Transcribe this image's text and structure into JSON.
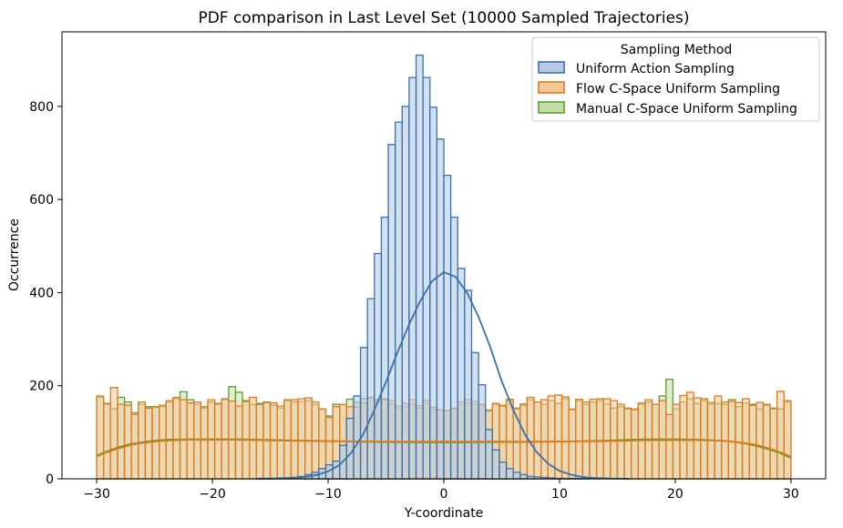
{
  "chart_data": {
    "type": "bar",
    "title": "PDF comparison in Last Level Set (10000 Sampled Trajectories)",
    "xlabel": "Y-coordinate",
    "ylabel": "Occurrence",
    "xlim": [
      -33.0,
      33.0
    ],
    "ylim": [
      0,
      960
    ],
    "xticks": [
      -30,
      -20,
      -10,
      0,
      10,
      20,
      30
    ],
    "xtick_labels": [
      "−30",
      "−20",
      "−10",
      "0",
      "10",
      "20",
      "30"
    ],
    "yticks": [
      0,
      200,
      400,
      600,
      800
    ],
    "ytick_labels": [
      "0",
      "200",
      "400",
      "600",
      "800"
    ],
    "grid": false,
    "legend": {
      "title": "Sampling Method",
      "position": "top-right"
    },
    "bin_width": 0.6,
    "series": [
      {
        "name": "Uniform Action Sampling",
        "color": "#3a70ad",
        "fill": "#b6cbe6",
        "x": [
          -16.2,
          -15.6,
          -15.0,
          -14.4,
          -13.8,
          -13.2,
          -12.6,
          -12.0,
          -11.4,
          -10.8,
          -10.2,
          -9.6,
          -9.0,
          -8.4,
          -7.8,
          -7.2,
          -6.6,
          -6.0,
          -5.4,
          -4.8,
          -4.2,
          -3.6,
          -3.0,
          -2.4,
          -1.8,
          -1.2,
          -0.6,
          0.0,
          0.6,
          1.2,
          1.8,
          2.4,
          3.0,
          3.6,
          4.2,
          4.8,
          5.4,
          6.0,
          6.6,
          7.2,
          7.8,
          8.4,
          9.0,
          9.6,
          10.2,
          10.8,
          11.4,
          12.0,
          12.6,
          13.2,
          13.8,
          14.4,
          15.0
        ],
        "values": [
          1,
          1,
          1,
          2,
          2,
          3,
          5,
          9,
          14,
          22,
          30,
          38,
          72,
          130,
          178,
          282,
          387,
          484,
          562,
          718,
          766,
          800,
          862,
          910,
          862,
          798,
          730,
          652,
          562,
          452,
          405,
          271,
          202,
          106,
          62,
          36,
          22,
          14,
          9,
          5,
          4,
          3,
          2,
          1,
          1,
          1,
          1,
          1,
          0,
          0,
          0,
          0,
          0
        ]
      },
      {
        "name": "Flow C-Space Uniform Sampling",
        "color": "#e07a1f",
        "fill": "#f6c89a",
        "x": [
          -30.0,
          -29.4,
          -28.8,
          -28.2,
          -27.6,
          -27.0,
          -26.4,
          -25.8,
          -25.2,
          -24.6,
          -24.0,
          -23.4,
          -22.8,
          -22.2,
          -21.6,
          -21.0,
          -20.4,
          -19.8,
          -19.2,
          -18.6,
          -18.0,
          -17.4,
          -16.8,
          -16.2,
          -15.6,
          -15.0,
          -14.4,
          -13.8,
          -13.2,
          -12.6,
          -12.0,
          -11.4,
          -10.8,
          -10.2,
          -9.6,
          -9.0,
          -8.4,
          -7.8,
          -7.2,
          -6.6,
          -6.0,
          -5.4,
          -4.8,
          -4.2,
          -3.6,
          -3.0,
          -2.4,
          -1.8,
          -1.2,
          -0.6,
          0.0,
          0.6,
          1.2,
          1.8,
          2.4,
          3.0,
          3.6,
          4.2,
          4.8,
          5.4,
          6.0,
          6.6,
          7.2,
          7.8,
          8.4,
          9.0,
          9.6,
          10.2,
          10.8,
          11.4,
          12.0,
          12.6,
          13.2,
          13.8,
          14.4,
          15.0,
          15.6,
          16.2,
          16.8,
          17.4,
          18.0,
          18.6,
          19.2,
          19.8,
          20.4,
          21.0,
          21.6,
          22.2,
          22.8,
          23.4,
          24.0,
          24.6,
          25.2,
          25.8,
          26.4,
          27.0,
          27.6,
          28.2,
          28.8,
          29.4
        ],
        "values": [
          178,
          162,
          196,
          160,
          158,
          138,
          165,
          152,
          155,
          158,
          168,
          175,
          170,
          163,
          165,
          155,
          170,
          162,
          172,
          167,
          156,
          166,
          175,
          160,
          164,
          163,
          156,
          170,
          170,
          172,
          174,
          165,
          150,
          132,
          155,
          160,
          155,
          154,
          163,
          174,
          165,
          170,
          168,
          156,
          162,
          170,
          157,
          168,
          154,
          148,
          147,
          152,
          165,
          170,
          166,
          160,
          148,
          162,
          158,
          171,
          152,
          161,
          175,
          165,
          170,
          178,
          180,
          176,
          150,
          171,
          165,
          171,
          172,
          172,
          168,
          160,
          152,
          150,
          163,
          170,
          160,
          168,
          138,
          160,
          179,
          186,
          174,
          172,
          164,
          178,
          165,
          166,
          164,
          172,
          158,
          164,
          160,
          152,
          188,
          168
        ],
        "kde": {
          "x": [
            -30,
            -29,
            -28,
            -27,
            -26,
            -25,
            -24,
            -22,
            -20,
            -18,
            -16,
            -14,
            -10,
            -5,
            0,
            5,
            10,
            14,
            16,
            18,
            20,
            22,
            24,
            25,
            26,
            27,
            28,
            29,
            30
          ],
          "y": [
            48,
            58,
            66,
            73,
            77,
            80,
            82,
            84,
            84,
            84,
            83,
            82,
            81,
            80,
            80,
            80,
            80,
            81,
            82,
            83,
            83,
            83,
            82,
            80,
            77,
            73,
            66,
            58,
            48
          ]
        }
      },
      {
        "name": "Manual C-Space Uniform Sampling",
        "color": "#5aa033",
        "fill": "#c4dca5",
        "x": [
          -30.0,
          -29.4,
          -28.8,
          -28.2,
          -27.6,
          -27.0,
          -26.4,
          -25.8,
          -25.2,
          -24.6,
          -24.0,
          -23.4,
          -22.8,
          -22.2,
          -21.6,
          -21.0,
          -20.4,
          -19.8,
          -19.2,
          -18.6,
          -18.0,
          -17.4,
          -16.8,
          -16.2,
          -15.6,
          -15.0,
          -14.4,
          -13.8,
          -13.2,
          -12.6,
          -12.0,
          -11.4,
          -10.8,
          -10.2,
          -9.6,
          -9.0,
          -8.4,
          -7.8,
          -7.2,
          -6.6,
          -6.0,
          -5.4,
          -4.8,
          -4.2,
          -3.6,
          -3.0,
          -2.4,
          -1.8,
          -1.2,
          -0.6,
          0.0,
          0.6,
          1.2,
          1.8,
          2.4,
          3.0,
          3.6,
          4.2,
          4.8,
          5.4,
          6.0,
          6.6,
          7.2,
          7.8,
          8.4,
          9.0,
          9.6,
          10.2,
          10.8,
          11.4,
          12.0,
          12.6,
          13.2,
          13.8,
          14.4,
          15.0,
          15.6,
          16.2,
          16.8,
          17.4,
          18.0,
          18.6,
          19.2,
          19.8,
          20.4,
          21.0,
          21.6,
          22.2,
          22.8,
          23.4,
          24.0,
          24.6,
          25.2,
          25.8,
          26.4,
          27.0,
          27.6,
          28.2,
          28.8,
          29.4
        ],
        "values": [
          175,
          160,
          150,
          175,
          165,
          142,
          160,
          155,
          153,
          155,
          165,
          172,
          187,
          170,
          160,
          152,
          165,
          160,
          170,
          198,
          186,
          168,
          160,
          162,
          165,
          158,
          152,
          168,
          165,
          166,
          168,
          160,
          150,
          135,
          160,
          160,
          171,
          165,
          172,
          175,
          170,
          172,
          160,
          150,
          155,
          160,
          152,
          162,
          148,
          148,
          146,
          150,
          160,
          163,
          160,
          158,
          145,
          160,
          156,
          168,
          150,
          158,
          170,
          165,
          160,
          168,
          162,
          172,
          148,
          168,
          160,
          165,
          168,
          160,
          152,
          155,
          150,
          148,
          160,
          165,
          160,
          178,
          214,
          150,
          165,
          172,
          162,
          168,
          160,
          162,
          160,
          170,
          155,
          163,
          160,
          150,
          158,
          150,
          150,
          165
        ],
        "kde": {
          "x": [
            -30,
            -29,
            -28,
            -27,
            -26,
            -25,
            -24,
            -22,
            -20,
            -18,
            -16,
            -14,
            -10,
            -5,
            0,
            5,
            10,
            14,
            16,
            18,
            20,
            22,
            24,
            25,
            26,
            27,
            28,
            29,
            30
          ],
          "y": [
            50,
            60,
            69,
            75,
            79,
            82,
            84,
            85,
            85,
            85,
            84,
            83,
            81,
            79,
            78,
            79,
            80,
            82,
            84,
            85,
            85,
            84,
            82,
            80,
            76,
            71,
            64,
            56,
            45
          ]
        }
      }
    ],
    "uniform_kde": {
      "x": [
        -16,
        -14,
        -12,
        -11,
        -10,
        -9,
        -8,
        -7,
        -6,
        -5,
        -4,
        -3,
        -2,
        -1,
        0,
        1,
        2,
        3,
        4,
        5,
        6,
        7,
        8,
        9,
        10,
        11,
        12,
        13,
        14,
        16
      ],
      "y": [
        0,
        1,
        4,
        8,
        16,
        30,
        56,
        94,
        148,
        208,
        272,
        332,
        384,
        425,
        444,
        434,
        400,
        348,
        284,
        210,
        148,
        96,
        58,
        33,
        17,
        9,
        4,
        2,
        1,
        0
      ]
    }
  }
}
